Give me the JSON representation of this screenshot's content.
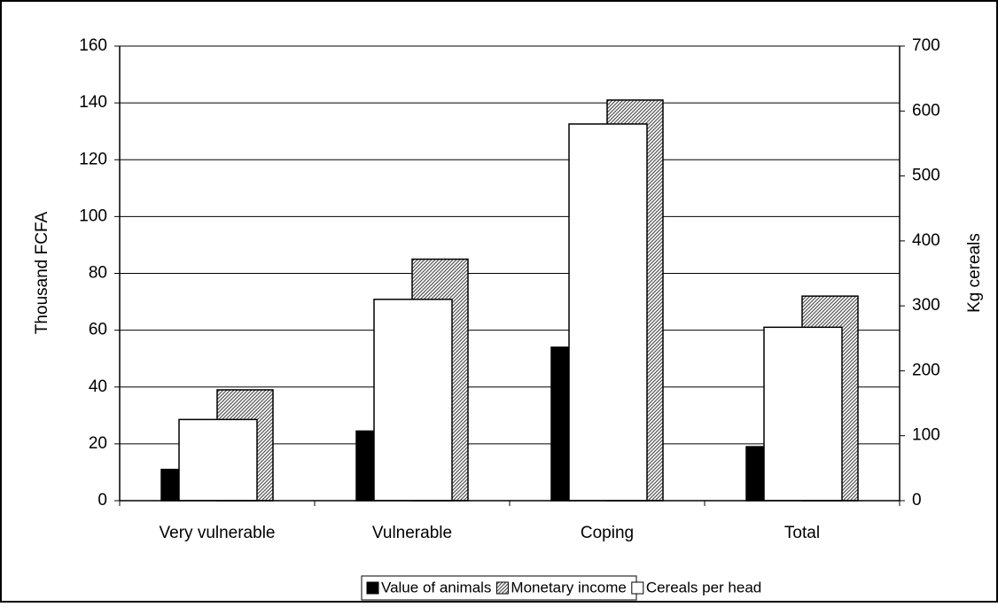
{
  "chart_data": {
    "type": "bar",
    "categories": [
      "Very vulnerable",
      "Vulnerable",
      "Coping",
      "Total"
    ],
    "series": [
      {
        "name": "Value of animals",
        "color": "#000000",
        "values": [
          11,
          24.5,
          54,
          19
        ]
      },
      {
        "name": "Monetary income",
        "color": "#808080",
        "pattern": "diagonal-hatch",
        "values": [
          39,
          85,
          141,
          72
        ]
      },
      {
        "name": "Cereals per head",
        "color": "#ffffff",
        "axis": "y2",
        "values": [
          125,
          310,
          580,
          267
        ]
      }
    ],
    "ylabel": "Thousand FCFA",
    "y2label": "Kg cereals",
    "ylim": [
      0,
      160
    ],
    "yticks": [
      0,
      20,
      40,
      60,
      80,
      100,
      120,
      140,
      160
    ],
    "y2lim": [
      0,
      700
    ],
    "y2ticks": [
      0,
      100,
      200,
      300,
      400,
      500,
      600,
      700
    ],
    "grid": true,
    "legend": "bottom"
  }
}
